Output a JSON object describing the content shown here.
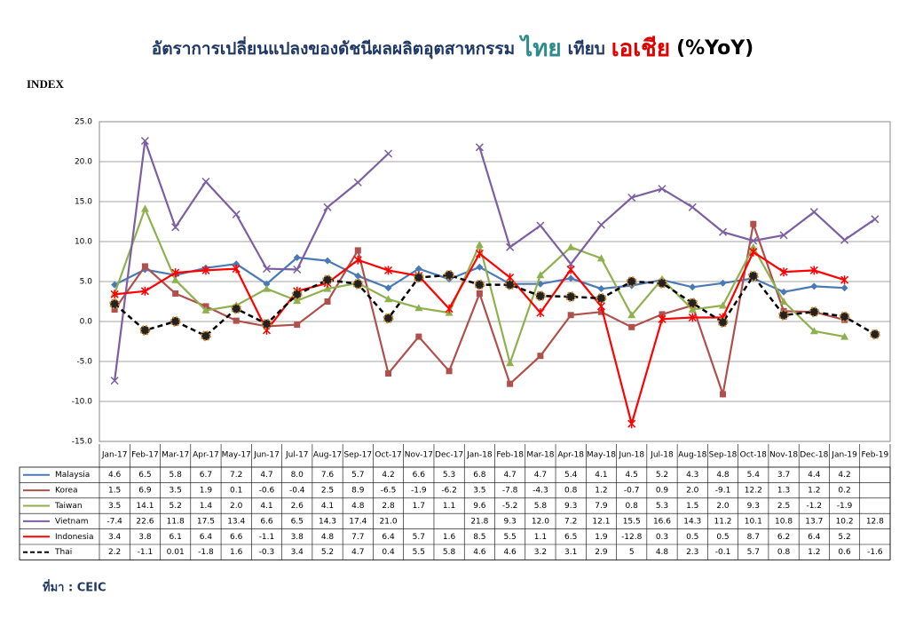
{
  "chart_data": {
    "type": "line",
    "title_parts": [
      {
        "text": "อัตราการเปลี่ยนแปลงของดัชนีผลผลิตอุตสาหกรรม",
        "color": "#1f3864"
      },
      {
        "text": "ไทย",
        "color": "#2e8b8b"
      },
      {
        "text": "เทียบ",
        "color": "#1f3864"
      },
      {
        "text": "เอเชีย",
        "color": "#e00000"
      },
      {
        "text": "(%YoY)",
        "color": "#000000"
      }
    ],
    "y_label": "INDEX",
    "source": "ที่มา : CEIC",
    "categories": [
      "Jan-17",
      "Feb-17",
      "Mar-17",
      "Apr-17",
      "May-17",
      "Jun-17",
      "Jul-17",
      "Aug-17",
      "Sep-17",
      "Oct-17",
      "Nov-17",
      "Dec-17",
      "Jan-18",
      "Feb-18",
      "Mar-18",
      "Apr-18",
      "May-18",
      "Jun-18",
      "Jul-18",
      "Aug-18",
      "Sep-18",
      "Oct-18",
      "Nov-18",
      "Dec-18",
      "Jan-19",
      "Feb-19"
    ],
    "ylim": [
      -15,
      25
    ],
    "yticks": [
      {
        "value": -15,
        "label": "-15.0"
      },
      {
        "value": -10,
        "label": "-10.0"
      },
      {
        "value": -5,
        "label": "-5.0"
      },
      {
        "value": 0,
        "label": "0.0"
      },
      {
        "value": 5,
        "label": "5.0"
      },
      {
        "value": 10,
        "label": "10.0"
      },
      {
        "value": 15,
        "label": "15.0"
      },
      {
        "value": 20,
        "label": "20.0"
      },
      {
        "value": 25,
        "label": "25.0"
      }
    ],
    "grid": true,
    "series": [
      {
        "name": "Malaysia",
        "color": "#4a7ab5",
        "marker": "diamond",
        "dashed": false,
        "values": [
          4.6,
          6.5,
          5.8,
          6.7,
          7.2,
          4.7,
          8.0,
          7.6,
          5.7,
          4.2,
          6.6,
          5.3,
          6.8,
          4.7,
          4.7,
          5.4,
          4.1,
          4.5,
          5.2,
          4.3,
          4.8,
          5.4,
          3.7,
          4.4,
          4.2,
          null
        ],
        "value_labels": [
          "4.6",
          "6.5",
          "5.8",
          "6.7",
          "7.2",
          "4.7",
          "8.0",
          "7.6",
          "5.7",
          "4.2",
          "6.6",
          "5.3",
          "6.8",
          "4.7",
          "4.7",
          "5.4",
          "4.1",
          "4.5",
          "5.2",
          "4.3",
          "4.8",
          "5.4",
          "3.7",
          "4.4",
          "4.2",
          null
        ]
      },
      {
        "name": "Korea",
        "color": "#b0504c",
        "marker": "square",
        "dashed": false,
        "values": [
          1.5,
          6.9,
          3.5,
          1.9,
          0.1,
          -0.6,
          -0.4,
          2.5,
          8.9,
          -6.5,
          -1.9,
          -6.2,
          3.5,
          -7.8,
          -4.3,
          0.8,
          1.2,
          -0.7,
          0.9,
          2.0,
          -9.1,
          12.2,
          1.3,
          1.2,
          0.2,
          null
        ],
        "value_labels": [
          "1.5",
          "6.9",
          "3.5",
          "1.9",
          "0.1",
          "-0.6",
          "-0.4",
          "2.5",
          "8.9",
          "-6.5",
          "-1.9",
          "-6.2",
          "3.5",
          "-7.8",
          "-4.3",
          "0.8",
          "1.2",
          "-0.7",
          "0.9",
          "2.0",
          "-9.1",
          "12.2",
          "1.3",
          "1.2",
          "0.2",
          null
        ]
      },
      {
        "name": "Taiwan",
        "color": "#8fb04e",
        "marker": "triangle",
        "dashed": false,
        "values": [
          3.5,
          14.1,
          5.2,
          1.4,
          2.0,
          4.1,
          2.6,
          4.1,
          4.8,
          2.8,
          1.7,
          1.1,
          9.6,
          -5.2,
          5.8,
          9.3,
          7.9,
          0.8,
          5.3,
          1.5,
          2.0,
          9.3,
          2.5,
          -1.2,
          -1.9,
          null
        ],
        "value_labels": [
          "3.5",
          "14.1",
          "5.2",
          "1.4",
          "2.0",
          "4.1",
          "2.6",
          "4.1",
          "4.8",
          "2.8",
          "1.7",
          "1.1",
          "9.6",
          "-5.2",
          "5.8",
          "9.3",
          "7.9",
          "0.8",
          "5.3",
          "1.5",
          "2.0",
          "9.3",
          "2.5",
          "-1.2",
          "-1.9",
          null
        ]
      },
      {
        "name": "Vietnam",
        "color": "#7b5fa0",
        "marker": "x",
        "dashed": false,
        "values": [
          -7.4,
          22.6,
          11.8,
          17.5,
          13.4,
          6.6,
          6.5,
          14.3,
          17.4,
          21.0,
          null,
          null,
          21.8,
          9.3,
          12.0,
          7.2,
          12.1,
          15.5,
          16.6,
          14.3,
          11.2,
          10.1,
          10.8,
          13.7,
          10.2,
          12.8
        ],
        "value_labels": [
          "-7.4",
          "22.6",
          "11.8",
          "17.5",
          "13.4",
          "6.6",
          "6.5",
          "14.3",
          "17.4",
          "21.0",
          null,
          null,
          "21.8",
          "9.3",
          "12.0",
          "7.2",
          "12.1",
          "15.5",
          "16.6",
          "14.3",
          "11.2",
          "10.1",
          "10.8",
          "13.7",
          "10.2",
          "12.8"
        ]
      },
      {
        "name": "Indonesia",
        "color": "#ff0000",
        "marker": "star",
        "dashed": false,
        "values": [
          3.4,
          3.8,
          6.1,
          6.4,
          6.6,
          -1.1,
          3.8,
          4.8,
          7.7,
          6.4,
          5.7,
          1.6,
          8.5,
          5.5,
          1.1,
          6.5,
          1.9,
          -12.8,
          0.3,
          0.5,
          0.5,
          8.7,
          6.2,
          6.4,
          5.2,
          null
        ],
        "value_labels": [
          "3.4",
          "3.8",
          "6.1",
          "6.4",
          "6.6",
          "-1.1",
          "3.8",
          "4.8",
          "7.7",
          "6.4",
          "5.7",
          "1.6",
          "8.5",
          "5.5",
          "1.1",
          "6.5",
          "1.9",
          "-12.8",
          "0.3",
          "0.5",
          "0.5",
          "8.7",
          "6.2",
          "6.4",
          "5.2",
          null
        ]
      },
      {
        "name": "Thai",
        "color": "#000000",
        "marker": "circle",
        "dashed": true,
        "values": [
          2.2,
          -1.1,
          0.01,
          -1.8,
          1.6,
          -0.3,
          3.4,
          5.2,
          4.7,
          0.4,
          5.5,
          5.8,
          4.6,
          4.6,
          3.2,
          3.1,
          2.9,
          5,
          4.8,
          2.3,
          -0.1,
          5.7,
          0.8,
          1.2,
          0.6,
          -1.6
        ],
        "value_labels": [
          "2.2",
          "-1.1",
          "0.01",
          "-1.8",
          "1.6",
          "-0.3",
          "3.4",
          "5.2",
          "4.7",
          "0.4",
          "5.5",
          "5.8",
          "4.6",
          "4.6",
          "3.2",
          "3.1",
          "2.9",
          "5",
          "4.8",
          "2.3",
          "-0.1",
          "5.7",
          "0.8",
          "1.2",
          "0.6",
          "-1.6"
        ]
      }
    ]
  }
}
